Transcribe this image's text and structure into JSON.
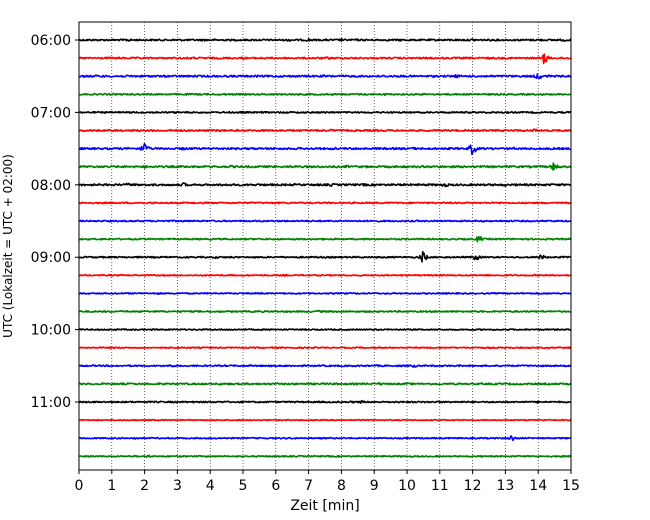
{
  "chart_data": {
    "type": "line",
    "xlabel": "Zeit  [min]",
    "ylabel": "UTC (Lokalzeit = UTC + 02:00)",
    "xlim": [
      0,
      15
    ],
    "x_ticks": [
      0,
      1,
      2,
      3,
      4,
      5,
      6,
      7,
      8,
      9,
      10,
      11,
      12,
      13,
      14,
      15
    ],
    "y_tick_labels": [
      "06:00",
      "07:00",
      "08:00",
      "09:00",
      "10:00",
      "11:00"
    ],
    "minutes_per_line": 15,
    "start": "06:00",
    "line_colors": [
      "#000000",
      "#ff0000",
      "#0000ff",
      "#008000"
    ],
    "grid": "vertical dotted lines at each minute",
    "traces": [
      {
        "start": "06:00",
        "color": "#000000",
        "noise": 0.8,
        "events": [
          [
            0.5,
            1.2
          ],
          [
            1.5,
            2.0
          ],
          [
            3.8,
            1.3
          ],
          [
            6.4,
            1.6
          ],
          [
            7.0,
            2.0
          ],
          [
            8.0,
            1.6
          ],
          [
            8.4,
            1.5
          ],
          [
            9.8,
            1.2
          ],
          [
            10.0,
            1.1
          ],
          [
            12.0,
            1.5
          ],
          [
            14.0,
            1.4
          ],
          [
            14.8,
            1.6
          ]
        ]
      },
      {
        "start": "06:15",
        "color": "#ff0000",
        "noise": 0.8,
        "events": [
          [
            1.2,
            1.2
          ],
          [
            3.4,
            1.3
          ],
          [
            5.0,
            1.5
          ],
          [
            7.6,
            1.6
          ],
          [
            8.2,
            1.2
          ],
          [
            11.5,
            1.1
          ],
          [
            12.5,
            1.1
          ],
          [
            14.2,
            6.5
          ]
        ]
      },
      {
        "start": "06:30",
        "color": "#0000ff",
        "noise": 0.9,
        "events": [
          [
            0.5,
            1.3
          ],
          [
            1.6,
            1.2
          ],
          [
            3.5,
            1.1
          ],
          [
            5.4,
            1.2
          ],
          [
            7.5,
            1.4
          ],
          [
            9.2,
            1.3
          ],
          [
            11.5,
            1.6
          ],
          [
            14.0,
            3.4
          ],
          [
            14.3,
            1.5
          ]
        ]
      },
      {
        "start": "06:45",
        "color": "#008000",
        "noise": 0.7,
        "events": [
          [
            1.0,
            1.2
          ],
          [
            2.7,
            1.0
          ],
          [
            4.5,
            1.1
          ],
          [
            5.6,
            1.2
          ],
          [
            7.1,
            1.3
          ],
          [
            9.3,
            1.6
          ],
          [
            10.5,
            1.3
          ],
          [
            12.1,
            1.2
          ],
          [
            12.8,
            1.1
          ]
        ]
      },
      {
        "start": "07:00",
        "color": "#000000",
        "noise": 0.7,
        "events": [
          [
            3.0,
            1.4
          ],
          [
            5.0,
            1.2
          ],
          [
            7.5,
            1.3
          ],
          [
            9.0,
            1.1
          ],
          [
            12.0,
            1.2
          ]
        ]
      },
      {
        "start": "07:15",
        "color": "#ff0000",
        "noise": 0.8,
        "events": [
          [
            1.0,
            1.2
          ],
          [
            3.2,
            1.5
          ],
          [
            5.5,
            1.3
          ],
          [
            7.7,
            1.4
          ],
          [
            9.0,
            1.2
          ],
          [
            11.4,
            1.2
          ],
          [
            13.9,
            2.0
          ]
        ]
      },
      {
        "start": "07:30",
        "color": "#0000ff",
        "noise": 0.9,
        "events": [
          [
            2.0,
            6.0
          ],
          [
            3.2,
            1.5
          ],
          [
            7.8,
            1.3
          ],
          [
            10.2,
            1.3
          ],
          [
            12.0,
            6.2
          ],
          [
            13.3,
            1.5
          ]
        ]
      },
      {
        "start": "07:45",
        "color": "#008000",
        "noise": 0.9,
        "events": [
          [
            2.0,
            1.4
          ],
          [
            4.6,
            1.3
          ],
          [
            7.2,
            1.5
          ],
          [
            8.2,
            1.4
          ],
          [
            11.0,
            1.3
          ],
          [
            13.0,
            1.2
          ],
          [
            14.5,
            4.5
          ]
        ]
      },
      {
        "start": "08:00",
        "color": "#000000",
        "noise": 0.9,
        "events": [
          [
            1.5,
            1.8
          ],
          [
            3.2,
            2.3
          ],
          [
            4.5,
            1.4
          ],
          [
            5.5,
            1.3
          ],
          [
            7.7,
            1.5
          ],
          [
            8.7,
            1.4
          ],
          [
            11.1,
            1.6
          ],
          [
            11.2,
            1.8
          ],
          [
            13.0,
            1.3
          ]
        ]
      },
      {
        "start": "08:15",
        "color": "#ff0000",
        "noise": 0.7,
        "events": [
          [
            2.2,
            1.5
          ],
          [
            4.0,
            1.2
          ],
          [
            7.0,
            1.1
          ],
          [
            9.0,
            1.3
          ],
          [
            12.0,
            1.2
          ]
        ]
      },
      {
        "start": "08:30",
        "color": "#0000ff",
        "noise": 0.7,
        "events": [
          [
            0.3,
            1.1
          ],
          [
            3.2,
            1.2
          ],
          [
            5.5,
            1.1
          ],
          [
            8.0,
            1.2
          ],
          [
            12.0,
            1.1
          ]
        ]
      },
      {
        "start": "08:45",
        "color": "#008000",
        "noise": 0.7,
        "events": [
          [
            0.7,
            1.1
          ],
          [
            5.8,
            1.2
          ],
          [
            10.0,
            1.3
          ],
          [
            12.2,
            4.2
          ]
        ]
      },
      {
        "start": "09:00",
        "color": "#000000",
        "noise": 0.7,
        "events": [
          [
            0.3,
            1.1
          ],
          [
            4.2,
            1.5
          ],
          [
            7.3,
            1.3
          ],
          [
            10.5,
            7.2
          ],
          [
            12.1,
            4.2
          ],
          [
            14.1,
            3.1
          ]
        ]
      },
      {
        "start": "09:15",
        "color": "#ff0000",
        "noise": 0.6,
        "events": [
          [
            6.3,
            1.4
          ],
          [
            13.9,
            1.2
          ]
        ]
      },
      {
        "start": "09:30",
        "color": "#0000ff",
        "noise": 0.6,
        "events": [
          [
            2.4,
            1.4
          ],
          [
            7.0,
            1.2
          ],
          [
            10.6,
            1.2
          ]
        ]
      },
      {
        "start": "09:45",
        "color": "#008000",
        "noise": 0.7,
        "events": [
          [
            4.3,
            1.2
          ],
          [
            7.3,
            1.6
          ],
          [
            9.0,
            1.3
          ],
          [
            13.3,
            1.2
          ]
        ]
      },
      {
        "start": "10:00",
        "color": "#000000",
        "noise": 0.6,
        "events": [
          [
            2.3,
            1.2
          ],
          [
            6.2,
            1.1
          ],
          [
            8.2,
            1.2
          ],
          [
            11.1,
            1.1
          ]
        ]
      },
      {
        "start": "10:15",
        "color": "#ff0000",
        "noise": 0.6,
        "events": [
          [
            14.3,
            1.4
          ]
        ]
      },
      {
        "start": "10:30",
        "color": "#0000ff",
        "noise": 0.7,
        "events": [
          [
            2.8,
            2.8
          ],
          [
            6.5,
            1.2
          ],
          [
            10.2,
            2.2
          ],
          [
            14.0,
            1.2
          ]
        ]
      },
      {
        "start": "10:45",
        "color": "#008000",
        "noise": 0.8,
        "events": [
          [
            4.3,
            1.4
          ],
          [
            6.0,
            1.3
          ],
          [
            9.2,
            1.5
          ],
          [
            10.0,
            1.4
          ],
          [
            14.9,
            1.4
          ]
        ]
      },
      {
        "start": "11:00",
        "color": "#000000",
        "noise": 0.7,
        "events": [
          [
            1.3,
            1.1
          ],
          [
            8.3,
            1.3
          ],
          [
            8.6,
            2.0
          ],
          [
            11.0,
            1.2
          ],
          [
            14.0,
            1.4
          ]
        ]
      },
      {
        "start": "11:15",
        "color": "#ff0000",
        "noise": 0.5,
        "events": [
          [
            1.7,
            1.1
          ],
          [
            3.3,
            1.1
          ],
          [
            14.2,
            1.2
          ]
        ]
      },
      {
        "start": "11:30",
        "color": "#0000ff",
        "noise": 0.6,
        "events": [
          [
            1.7,
            2.0
          ],
          [
            10.0,
            1.3
          ],
          [
            13.2,
            4.5
          ]
        ]
      },
      {
        "start": "11:45",
        "color": "#008000",
        "noise": 0.6,
        "events": [
          [
            2.1,
            2.4
          ],
          [
            6.0,
            1.1
          ],
          [
            12.2,
            1.1
          ]
        ]
      }
    ]
  }
}
